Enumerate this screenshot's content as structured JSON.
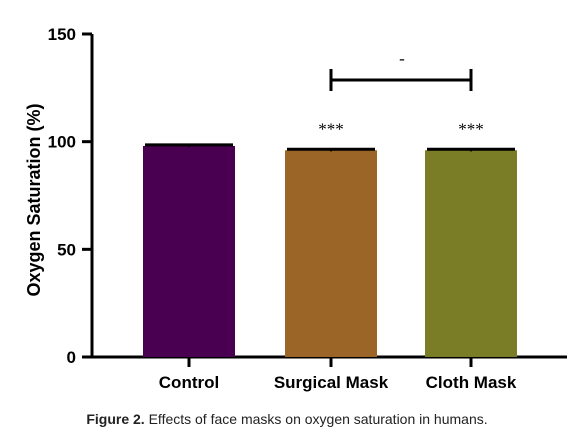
{
  "chart_data": {
    "type": "bar",
    "ylabel": "Oxygen Saturation (%)",
    "xlabel": "",
    "ylim": [
      0,
      150
    ],
    "yticks": [
      0,
      50,
      100,
      150
    ],
    "categories": [
      "Control",
      "Surgical Mask",
      "Cloth Mask"
    ],
    "values": [
      98,
      96,
      96
    ],
    "errors": [
      0.5,
      0.5,
      0.5
    ],
    "colors": [
      "#4a0050",
      "#9b6528",
      "#7a7d25"
    ],
    "significance": [
      "",
      "***",
      "***"
    ],
    "comparison": {
      "between": [
        "Surgical Mask",
        "Cloth Mask"
      ],
      "label": "-"
    },
    "grid": false
  },
  "caption": {
    "label": "Figure 2.",
    "text": "Effects of face masks on oxygen saturation in humans."
  }
}
